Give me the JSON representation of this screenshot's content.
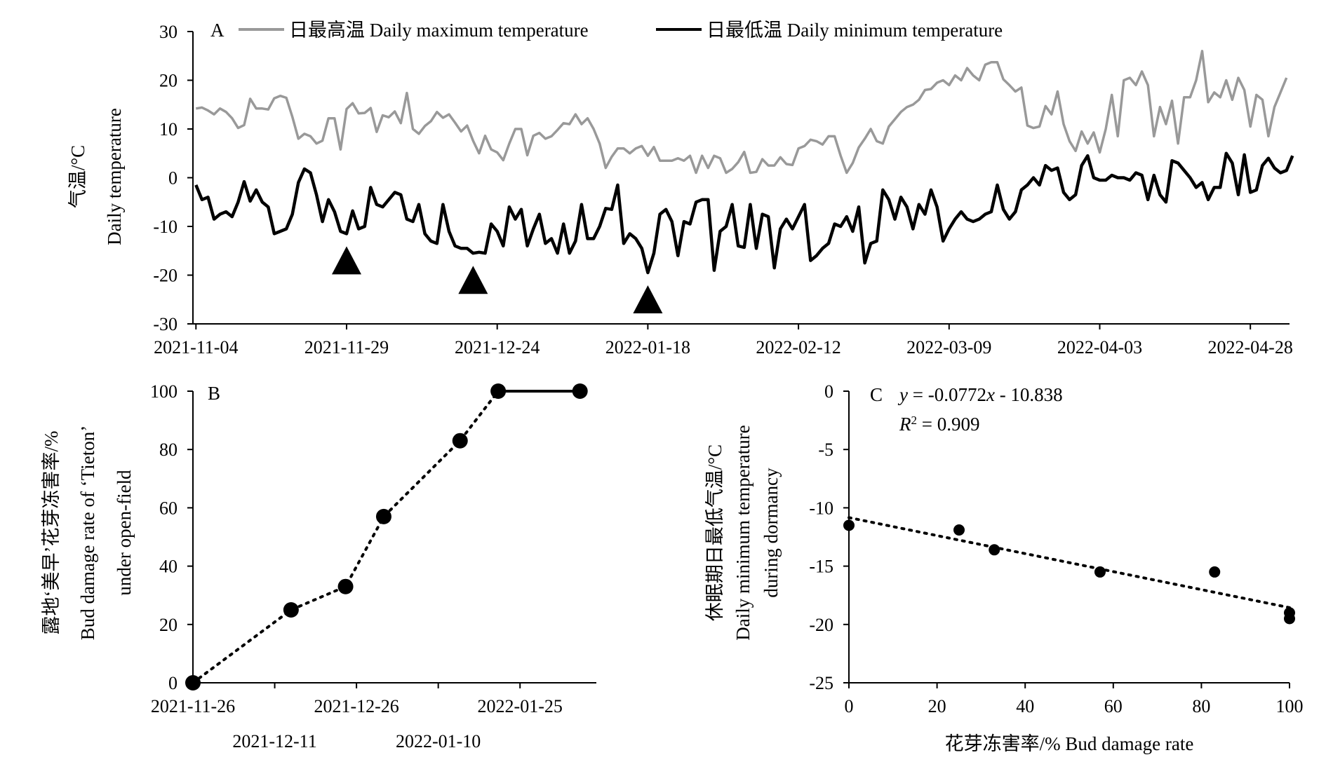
{
  "chart_data": [
    {
      "panel": "A",
      "type": "line",
      "ylabel_cn": "气温/°C",
      "ylabel_en": "Daily temperature",
      "ylim": [
        -30,
        30
      ],
      "yticks": [
        "30",
        "20",
        "10",
        "0",
        "-10",
        "-20",
        "-30"
      ],
      "xticks": [
        "2021-11-04",
        "2021-11-29",
        "2021-12-24",
        "2022-01-18",
        "2022-02-12",
        "2022-03-09",
        "2022-04-03",
        "2022-04-28"
      ],
      "x_start": "2021-11-04",
      "legend_position": "top",
      "grid": false,
      "colors": {
        "max": "#999999",
        "min": "#000000"
      },
      "markers": {
        "shape": "triangle",
        "dates": [
          "2021-11-29",
          "2021-12-20",
          "2022-01-18"
        ]
      },
      "series": [
        {
          "name": "日最高温 Daily maximum temperature",
          "values": [
            14.2,
            14.4,
            13.8,
            13.0,
            14.2,
            13.5,
            12.2,
            10.2,
            10.8,
            16.2,
            14.2,
            14.2,
            14.0,
            16.3,
            16.8,
            16.4,
            12.5,
            8.0,
            9.0,
            8.5,
            7.0,
            7.6,
            12.2,
            12.2,
            5.8,
            14.1,
            15.3,
            13.2,
            13.3,
            14.3,
            9.4,
            12.8,
            12.4,
            13.6,
            11.2,
            17.4,
            10.0,
            9.0,
            10.6,
            11.6,
            13.5,
            12.3,
            13.0,
            11.3,
            9.5,
            10.7,
            7.6,
            5.0,
            8.6,
            5.8,
            5.2,
            3.6,
            7.0,
            10.0,
            10.0,
            4.6,
            8.6,
            9.2,
            8.0,
            8.5,
            9.8,
            11.2,
            11.0,
            13.0,
            11.0,
            12.2,
            10.0,
            7.0,
            2.0,
            4.3,
            6.0,
            6.0,
            5.0,
            6.0,
            6.5,
            4.5,
            6.3,
            3.5,
            3.5,
            3.5,
            4.0,
            3.5,
            4.5,
            1.0,
            4.5,
            2.0,
            4.5,
            4.0,
            1.0,
            1.8,
            3.2,
            5.3,
            1.0,
            1.2,
            3.8,
            2.5,
            2.5,
            4.2,
            2.8,
            2.6,
            6.0,
            6.5,
            7.8,
            7.5,
            6.8,
            8.5,
            8.5,
            4.5,
            1.0,
            3.0,
            6.2,
            8.0,
            10.0,
            7.5,
            7.0,
            10.5,
            12.0,
            13.5,
            14.5,
            15.0,
            16.0,
            18.0,
            18.2,
            19.5,
            20.0,
            19.0,
            21.0,
            20.0,
            22.5,
            21.0,
            20.0,
            23.2,
            23.7,
            23.7,
            20.2,
            19.0,
            17.7,
            18.5,
            10.7,
            10.2,
            10.5,
            14.7,
            13.0,
            17.7,
            11.0,
            7.5,
            5.5,
            9.5,
            7.0,
            9.3,
            5.2,
            10.0,
            17.0,
            8.5,
            20.0,
            20.5,
            19.0,
            21.8,
            19.0,
            8.5,
            14.5,
            11.0,
            15.8,
            7.0,
            16.5,
            16.5,
            20.0,
            26.0,
            15.5,
            17.5,
            16.5,
            20.0,
            16.0,
            20.5,
            18.0,
            10.5,
            17.0,
            16.0,
            8.5,
            14.5,
            17.5,
            20.5
          ]
        },
        {
          "name": "日最低温 Daily minimum temperature",
          "values": [
            -1.5,
            -4.5,
            -4.0,
            -8.5,
            -7.5,
            -7.0,
            -8.0,
            -5.0,
            -0.8,
            -4.8,
            -2.5,
            -5.0,
            -6.0,
            -11.5,
            -11.0,
            -10.5,
            -7.5,
            -1.0,
            1.8,
            1.0,
            -3.5,
            -9.0,
            -4.5,
            -7.0,
            -11.0,
            -11.5,
            -6.8,
            -10.5,
            -10.0,
            -2.0,
            -5.5,
            -6.0,
            -4.5,
            -3.0,
            -3.5,
            -8.5,
            -9.0,
            -5.5,
            -11.5,
            -13.0,
            -13.5,
            -5.5,
            -11.0,
            -14.0,
            -14.5,
            -14.5,
            -15.5,
            -15.3,
            -15.5,
            -9.5,
            -11.0,
            -14.0,
            -6.0,
            -8.5,
            -6.5,
            -14.0,
            -10.5,
            -7.5,
            -13.5,
            -12.5,
            -15.5,
            -9.5,
            -15.5,
            -13.0,
            -5.5,
            -12.5,
            -12.5,
            -10.0,
            -6.3,
            -6.5,
            -1.5,
            -13.5,
            -11.5,
            -12.5,
            -14.5,
            -19.5,
            -15.5,
            -7.5,
            -6.5,
            -9.0,
            -16.0,
            -9.0,
            -9.5,
            -5.0,
            -4.5,
            -4.5,
            -19.0,
            -11.0,
            -10.0,
            -5.5,
            -14.0,
            -14.3,
            -5.5,
            -14.5,
            -7.5,
            -8.0,
            -18.5,
            -10.5,
            -8.5,
            -10.5,
            -8.0,
            -5.5,
            -17.0,
            -16.0,
            -14.5,
            -13.5,
            -9.5,
            -10.0,
            -8.0,
            -11.0,
            -6.0,
            -17.5,
            -13.5,
            -13.0,
            -2.5,
            -4.5,
            -8.5,
            -4.0,
            -6.0,
            -10.5,
            -5.5,
            -7.5,
            -2.5,
            -6.0,
            -13.0,
            -10.5,
            -8.5,
            -7.0,
            -8.5,
            -9.0,
            -8.5,
            -7.5,
            -7.0,
            -1.5,
            -6.5,
            -8.5,
            -7.0,
            -2.5,
            -1.5,
            0.0,
            -1.5,
            2.5,
            1.5,
            2.0,
            -3.0,
            -4.5,
            -3.5,
            2.5,
            4.5,
            0.0,
            -0.5,
            -0.5,
            0.5,
            0.0,
            0.0,
            -0.5,
            1.0,
            0.5,
            -4.5,
            0.5,
            -3.5,
            -5.0,
            3.5,
            3.0,
            1.5,
            0.0,
            -2.0,
            -1.0,
            -4.5,
            -2.0,
            -2.0,
            5.0,
            3.0,
            -3.5,
            4.7,
            -3.0,
            -2.5,
            2.5,
            4.0,
            2.0,
            1.0,
            1.5,
            4.5
          ]
        }
      ]
    },
    {
      "panel": "B",
      "type": "line",
      "ylabel_cn": "露地‘美早’花芽冻害率/%",
      "ylabel_en1": "Bud damage rate of ‘Tieton’",
      "ylabel_en2": "under open-field",
      "ylim": [
        0,
        100
      ],
      "yticks": [
        "100",
        "80",
        "60",
        "40",
        "20",
        "0"
      ],
      "xticks_top": [
        "2021-11-26",
        "2021-12-26",
        "2022-01-25"
      ],
      "xticks_bottom": [
        "2021-12-11",
        "2022-01-10"
      ],
      "x": [
        "2021-11-26",
        "2021-12-14",
        "2021-12-24",
        "2021-12-31",
        "2022-01-14",
        "2022-01-21",
        "2022-02-05"
      ],
      "values": [
        0,
        25,
        33,
        57,
        83,
        100,
        100
      ]
    },
    {
      "panel": "C",
      "type": "scatter",
      "xlabel": "花芽冻害率/%  Bud damage rate",
      "ylabel_cn": "休眠期日最低气温/°C",
      "ylabel_en1": "Daily minimum temperature",
      "ylabel_en2": "during dormancy",
      "xlim": [
        0,
        100
      ],
      "ylim": [
        -25,
        0
      ],
      "xticks": [
        "0",
        "20",
        "40",
        "60",
        "80",
        "100"
      ],
      "yticks": [
        "0",
        "-5",
        "-10",
        "-15",
        "-20",
        "-25"
      ],
      "x": [
        0,
        25,
        33,
        57,
        83,
        100,
        100
      ],
      "y": [
        -11.5,
        -11.9,
        -13.6,
        -15.5,
        -15.5,
        -19.0,
        -19.5
      ],
      "trend_slope": -0.0772,
      "trend_intercept": -10.838,
      "eq_y": "y",
      "eq_eq": " = -0.0772",
      "eq_x": "x",
      "eq_rest": " - 10.838",
      "r2_R": "R",
      "r2_sup": "2",
      "r2_rest": " = 0.909"
    }
  ]
}
